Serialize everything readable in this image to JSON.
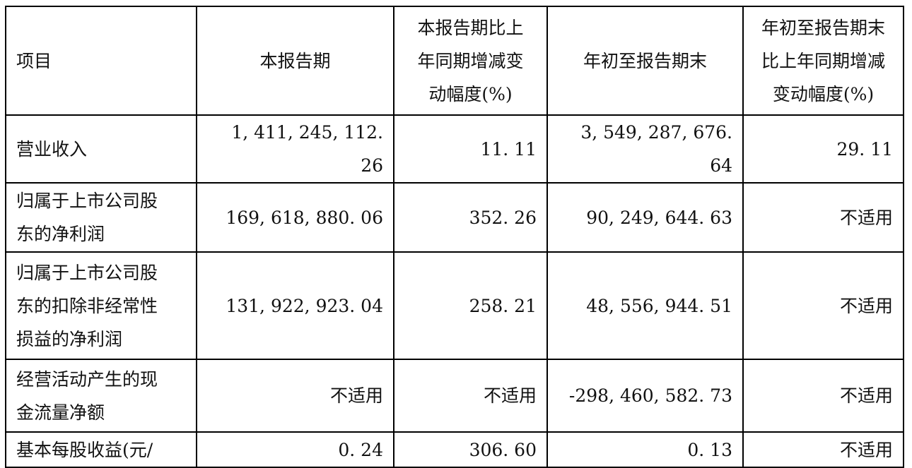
{
  "headers": [
    "项目",
    "本报告期",
    "本报告期比上\n年同期增减变\n动幅度(%)",
    "年初至报告期末",
    "年初至报告期末\n比上年同期增减\n变动幅度(%)"
  ],
  "rows": [
    {
      "item": "营业收入",
      "current": "1, 411, 245, 112. 26",
      "current_change": "11. 11",
      "ytd": "3, 549, 287, 676. 64",
      "ytd_change": "29. 11"
    },
    {
      "item": "归属于上市公司股\n东的净利润",
      "current": "169, 618, 880. 06",
      "current_change": "352. 26",
      "ytd": "90, 249, 644. 63",
      "ytd_change": "不适用"
    },
    {
      "item": "归属于上市公司股\n东的扣除非经常性\n损益的净利润",
      "current": "131, 922, 923. 04",
      "current_change": "258. 21",
      "ytd": "48, 556, 944. 51",
      "ytd_change": "不适用"
    },
    {
      "item": "经营活动产生的现\n金流量净额",
      "current": "不适用",
      "current_change": "不适用",
      "ytd": "-298, 460, 582. 73",
      "ytd_change": "不适用"
    },
    {
      "item": "基本每股收益(元/",
      "current": "0. 24",
      "current_change": "306. 60",
      "ytd": "0. 13",
      "ytd_change": "不适用"
    }
  ]
}
